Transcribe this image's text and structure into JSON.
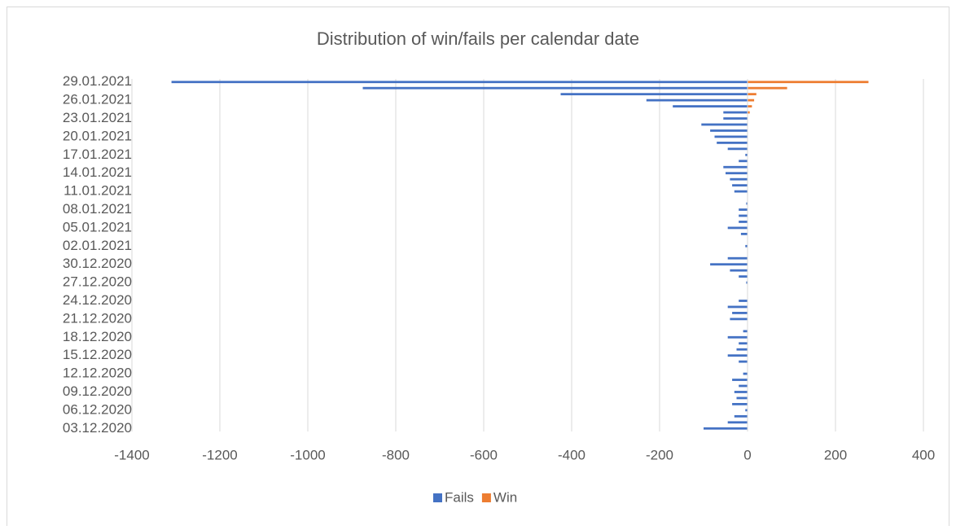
{
  "chart_data": {
    "type": "barh",
    "title": "Distribution of win/fails per calendar date",
    "categories": [
      "03.12.2020",
      null,
      null,
      "06.12.2020",
      null,
      null,
      "09.12.2020",
      null,
      null,
      "12.12.2020",
      null,
      null,
      "15.12.2020",
      null,
      null,
      "18.12.2020",
      null,
      null,
      "21.12.2020",
      null,
      null,
      "24.12.2020",
      null,
      null,
      "27.12.2020",
      null,
      null,
      "30.12.2020",
      null,
      null,
      "02.01.2021",
      null,
      null,
      "05.01.2021",
      null,
      null,
      "08.01.2021",
      null,
      null,
      "11.01.2021",
      null,
      null,
      "14.01.2021",
      null,
      null,
      "17.01.2021",
      null,
      null,
      "20.01.2021",
      null,
      null,
      "23.01.2021",
      null,
      null,
      "26.01.2021",
      null,
      null,
      "29.01.2021"
    ],
    "series": [
      {
        "name": "Fails",
        "color": "#4472c4",
        "values": [
          -100,
          -45,
          -30,
          -5,
          -35,
          -25,
          -30,
          -20,
          -35,
          -10,
          0,
          -20,
          -45,
          -25,
          -20,
          -45,
          -10,
          0,
          -40,
          -35,
          -45,
          -20,
          0,
          0,
          -3,
          -20,
          -40,
          -85,
          -45,
          0,
          -5,
          0,
          -15,
          -45,
          -20,
          -20,
          -20,
          -3,
          0,
          -30,
          -35,
          -40,
          -50,
          -55,
          -20,
          -5,
          -45,
          -70,
          -75,
          -85,
          -105,
          -55,
          -55,
          -170,
          -230,
          -425,
          -875,
          -1310
        ]
      },
      {
        "name": "Win",
        "color": "#ed7d31",
        "values": [
          0,
          0,
          0,
          0,
          0,
          0,
          0,
          0,
          0,
          0,
          0,
          0,
          0,
          0,
          0,
          0,
          0,
          0,
          0,
          0,
          0,
          0,
          0,
          0,
          0,
          0,
          0,
          0,
          0,
          0,
          0,
          0,
          0,
          0,
          0,
          0,
          0,
          0,
          0,
          0,
          0,
          0,
          0,
          0,
          0,
          0,
          0,
          0,
          0,
          0,
          0,
          0,
          5,
          10,
          15,
          20,
          90,
          275
        ]
      }
    ],
    "xlim": [
      -1400,
      400
    ],
    "xticks": [
      -1400,
      -1200,
      -1000,
      -800,
      -600,
      -400,
      -200,
      0,
      200,
      400
    ],
    "grid": true,
    "legend": "bottom"
  }
}
